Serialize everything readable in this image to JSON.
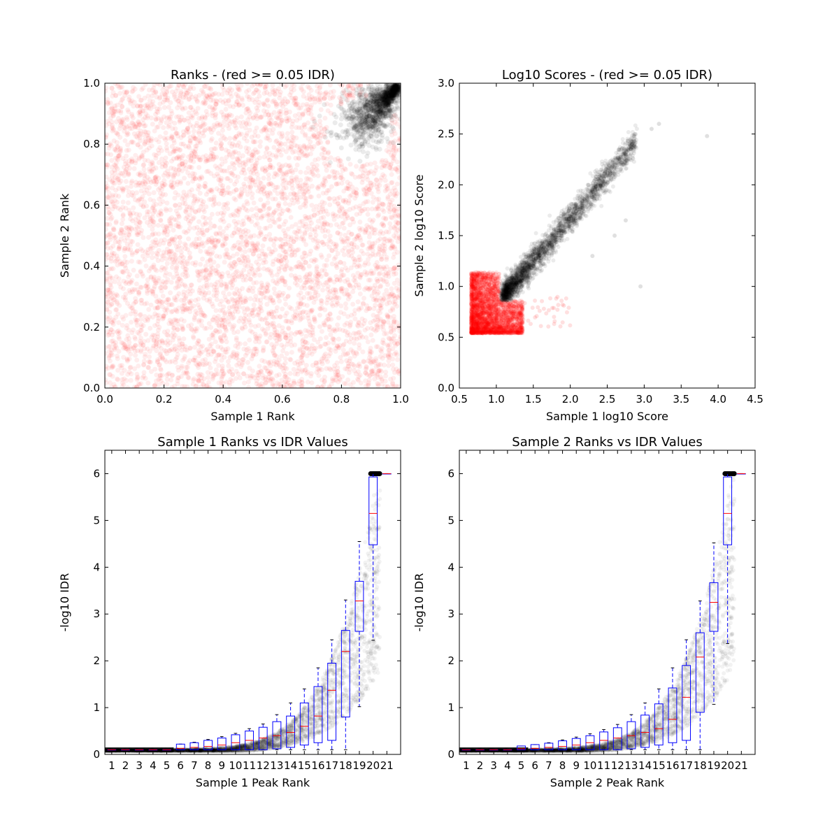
{
  "chart_data": [
    {
      "type": "scatter",
      "title": "Ranks - (red >= 0.05 IDR)",
      "xlabel": "Sample 1 Rank",
      "ylabel": "Sample 2 Rank",
      "xlim": [
        0.0,
        1.0
      ],
      "ylim": [
        0.0,
        1.0
      ],
      "xticks": [
        "0.0",
        "0.2",
        "0.4",
        "0.6",
        "0.8",
        "1.0"
      ],
      "yticks": [
        "0.0",
        "0.2",
        "0.4",
        "0.6",
        "0.8",
        "1.0"
      ],
      "series": [
        {
          "color": "#ff0000",
          "opacity": 0.06,
          "region": "uniform over [0,1]x[0,1], excluding the upper-right black cluster",
          "points": [
            [
              0.05,
              0.1
            ],
            [
              0.2,
              0.6
            ],
            [
              0.4,
              0.3
            ],
            [
              0.6,
              0.8
            ],
            [
              0.8,
              0.5
            ],
            [
              0.3,
              0.9
            ],
            [
              0.95,
              0.2
            ]
          ]
        },
        {
          "color": "#000000",
          "opacity": 0.08,
          "region": "teardrop cluster between (0.73, 0.73) and (1.0, 1.0)",
          "points": [
            [
              0.8,
              0.85
            ],
            [
              0.9,
              0.92
            ],
            [
              0.97,
              0.98
            ],
            [
              0.85,
              0.78
            ],
            [
              0.93,
              0.88
            ]
          ]
        }
      ]
    },
    {
      "type": "scatter",
      "title": "Log10 Scores - (red >= 0.05 IDR)",
      "xlabel": "Sample 1 log10 Score",
      "ylabel": "Sample 2 log10 Score",
      "xlim": [
        0.5,
        4.5
      ],
      "ylim": [
        0.0,
        3.0
      ],
      "xticks": [
        "0.5",
        "1.0",
        "1.5",
        "2.0",
        "2.5",
        "3.0",
        "3.5",
        "4.0",
        "4.5"
      ],
      "yticks": [
        "0.0",
        "0.5",
        "1.0",
        "1.5",
        "2.0",
        "2.5",
        "3.0"
      ],
      "series": [
        {
          "color": "#ff0000",
          "opacity": 0.08,
          "region": "x 0.65-1.4, y 0.53-1.15",
          "points": [
            [
              0.7,
              0.6
            ],
            [
              1.0,
              0.7
            ],
            [
              1.3,
              0.6
            ],
            [
              0.8,
              1.0
            ],
            [
              1.5,
              0.55
            ]
          ]
        },
        {
          "color": "#000000",
          "opacity": 0.08,
          "region": "diagonal band from (1.05, 0.87) to (2.9, 2.4)",
          "points": [
            [
              1.1,
              0.9
            ],
            [
              1.5,
              1.3
            ],
            [
              2.0,
              1.7
            ],
            [
              2.5,
              2.1
            ],
            [
              2.85,
              2.4
            ],
            [
              3.2,
              2.6
            ],
            [
              3.85,
              2.48
            ],
            [
              2.95,
              1.0
            ]
          ]
        }
      ]
    },
    {
      "type": "box",
      "title": "Sample 1 Ranks vs IDR Values",
      "xlabel": "Sample 1 Peak Rank",
      "ylabel": "-log10 IDR",
      "ylim": [
        0,
        6.5
      ],
      "yticks": [
        "0",
        "1",
        "2",
        "3",
        "4",
        "5",
        "6"
      ],
      "categories": [
        "1",
        "2",
        "3",
        "4",
        "5",
        "6",
        "7",
        "8",
        "9",
        "10",
        "11",
        "12",
        "13",
        "14",
        "15",
        "16",
        "17",
        "18",
        "19",
        "20",
        "21"
      ],
      "boxes": [
        {
          "q1": 0.1,
          "median": 0.1,
          "q3": 0.1,
          "whislo": 0.1,
          "whishi": 0.1
        },
        {
          "q1": 0.1,
          "median": 0.1,
          "q3": 0.1,
          "whislo": 0.1,
          "whishi": 0.1
        },
        {
          "q1": 0.1,
          "median": 0.1,
          "q3": 0.1,
          "whislo": 0.1,
          "whishi": 0.1
        },
        {
          "q1": 0.1,
          "median": 0.1,
          "q3": 0.1,
          "whislo": 0.1,
          "whishi": 0.1
        },
        {
          "q1": 0.1,
          "median": 0.1,
          "q3": 0.1,
          "whislo": 0.1,
          "whishi": 0.1
        },
        {
          "q1": 0.1,
          "median": 0.13,
          "q3": 0.22,
          "whislo": 0.1,
          "whishi": 0.22
        },
        {
          "q1": 0.1,
          "median": 0.15,
          "q3": 0.25,
          "whislo": 0.1,
          "whishi": 0.26
        },
        {
          "q1": 0.1,
          "median": 0.17,
          "q3": 0.3,
          "whislo": 0.1,
          "whishi": 0.32
        },
        {
          "q1": 0.1,
          "median": 0.2,
          "q3": 0.35,
          "whislo": 0.1,
          "whishi": 0.38
        },
        {
          "q1": 0.1,
          "median": 0.25,
          "q3": 0.42,
          "whislo": 0.1,
          "whishi": 0.45
        },
        {
          "q1": 0.1,
          "median": 0.3,
          "q3": 0.5,
          "whislo": 0.1,
          "whishi": 0.55
        },
        {
          "q1": 0.1,
          "median": 0.35,
          "q3": 0.58,
          "whislo": 0.1,
          "whishi": 0.65
        },
        {
          "q1": 0.12,
          "median": 0.4,
          "q3": 0.7,
          "whislo": 0.1,
          "whishi": 0.85
        },
        {
          "q1": 0.15,
          "median": 0.47,
          "q3": 0.82,
          "whislo": 0.1,
          "whishi": 1.1
        },
        {
          "q1": 0.2,
          "median": 0.6,
          "q3": 1.1,
          "whislo": 0.1,
          "whishi": 1.4
        },
        {
          "q1": 0.25,
          "median": 0.82,
          "q3": 1.45,
          "whislo": 0.1,
          "whishi": 1.85
        },
        {
          "q1": 0.3,
          "median": 1.37,
          "q3": 1.95,
          "whislo": 0.1,
          "whishi": 2.45
        },
        {
          "q1": 0.8,
          "median": 2.2,
          "q3": 2.65,
          "whislo": 0.1,
          "whishi": 3.3
        },
        {
          "q1": 2.63,
          "median": 3.28,
          "q3": 3.7,
          "whislo": 1.02,
          "whishi": 4.55
        },
        {
          "q1": 4.48,
          "median": 5.15,
          "q3": 5.93,
          "whislo": 2.44,
          "whishi": 6.0
        },
        {
          "q1": 6.0,
          "median": 6.0,
          "q3": 6.0,
          "whislo": 6.0,
          "whishi": 6.0
        }
      ],
      "scatter_color": "#000000",
      "scatter_description": "dense black points along an exponential curve from 0.1 at rank 1 to 6.0 at rank 20"
    },
    {
      "type": "box",
      "title": "Sample 2 Ranks vs IDR Values",
      "xlabel": "Sample 2 Peak Rank",
      "ylabel": "-log10 IDR",
      "ylim": [
        0,
        6.5
      ],
      "yticks": [
        "0",
        "1",
        "2",
        "3",
        "4",
        "5",
        "6"
      ],
      "categories": [
        "1",
        "2",
        "3",
        "4",
        "5",
        "6",
        "7",
        "8",
        "9",
        "10",
        "11",
        "12",
        "13",
        "14",
        "15",
        "16",
        "17",
        "18",
        "19",
        "20",
        "21"
      ],
      "boxes": [
        {
          "q1": 0.1,
          "median": 0.1,
          "q3": 0.1,
          "whislo": 0.1,
          "whishi": 0.1
        },
        {
          "q1": 0.1,
          "median": 0.1,
          "q3": 0.1,
          "whislo": 0.1,
          "whishi": 0.1
        },
        {
          "q1": 0.1,
          "median": 0.1,
          "q3": 0.1,
          "whislo": 0.1,
          "whishi": 0.1
        },
        {
          "q1": 0.1,
          "median": 0.1,
          "q3": 0.1,
          "whislo": 0.1,
          "whishi": 0.1
        },
        {
          "q1": 0.1,
          "median": 0.12,
          "q3": 0.18,
          "whislo": 0.1,
          "whishi": 0.18
        },
        {
          "q1": 0.1,
          "median": 0.13,
          "q3": 0.21,
          "whislo": 0.1,
          "whishi": 0.21
        },
        {
          "q1": 0.1,
          "median": 0.15,
          "q3": 0.24,
          "whislo": 0.1,
          "whishi": 0.25
        },
        {
          "q1": 0.1,
          "median": 0.17,
          "q3": 0.29,
          "whislo": 0.1,
          "whishi": 0.31
        },
        {
          "q1": 0.1,
          "median": 0.2,
          "q3": 0.34,
          "whislo": 0.1,
          "whishi": 0.37
        },
        {
          "q1": 0.1,
          "median": 0.25,
          "q3": 0.4,
          "whislo": 0.1,
          "whishi": 0.44
        },
        {
          "q1": 0.1,
          "median": 0.3,
          "q3": 0.48,
          "whislo": 0.1,
          "whishi": 0.53
        },
        {
          "q1": 0.1,
          "median": 0.35,
          "q3": 0.57,
          "whislo": 0.1,
          "whishi": 0.64
        },
        {
          "q1": 0.12,
          "median": 0.4,
          "q3": 0.7,
          "whislo": 0.1,
          "whishi": 0.85
        },
        {
          "q1": 0.15,
          "median": 0.47,
          "q3": 0.84,
          "whislo": 0.1,
          "whishi": 1.1
        },
        {
          "q1": 0.2,
          "median": 0.55,
          "q3": 1.08,
          "whislo": 0.1,
          "whishi": 1.4
        },
        {
          "q1": 0.25,
          "median": 0.75,
          "q3": 1.42,
          "whislo": 0.1,
          "whishi": 1.85
        },
        {
          "q1": 0.3,
          "median": 1.22,
          "q3": 1.9,
          "whislo": 0.1,
          "whishi": 2.45
        },
        {
          "q1": 0.9,
          "median": 2.08,
          "q3": 2.6,
          "whislo": 0.1,
          "whishi": 3.28
        },
        {
          "q1": 2.63,
          "median": 3.25,
          "q3": 3.67,
          "whislo": 1.07,
          "whishi": 4.52
        },
        {
          "q1": 4.48,
          "median": 5.15,
          "q3": 5.93,
          "whislo": 2.37,
          "whishi": 6.0
        },
        {
          "q1": 6.0,
          "median": 6.0,
          "q3": 6.0,
          "whislo": 6.0,
          "whishi": 6.0
        }
      ],
      "scatter_color": "#000000",
      "scatter_description": "dense black points along an exponential curve from 0.1 at rank 1 to 6.0 at rank 20"
    }
  ]
}
